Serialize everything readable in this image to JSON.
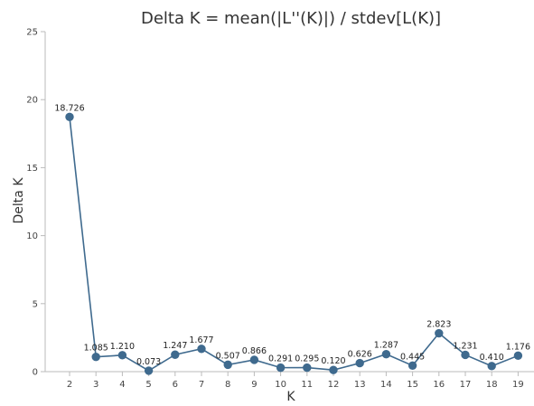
{
  "chart_data": {
    "type": "line",
    "title": "Delta K = mean(|L''(K)|) / stdev[L(K)]",
    "xlabel": "K",
    "ylabel": "Delta K",
    "ylim": [
      0,
      25
    ],
    "y_ticks": [
      "0",
      "5",
      "10",
      "15",
      "20",
      "25"
    ],
    "x": [
      "2",
      "3",
      "4",
      "5",
      "6",
      "7",
      "8",
      "9",
      "10",
      "11",
      "12",
      "13",
      "14",
      "15",
      "16",
      "17",
      "18",
      "19"
    ],
    "values": [
      18.726,
      1.085,
      1.21,
      0.073,
      1.247,
      1.677,
      0.507,
      0.866,
      0.291,
      0.295,
      0.12,
      0.626,
      1.287,
      0.445,
      2.823,
      1.231,
      0.41,
      1.176
    ],
    "data_labels": [
      "18.726",
      "1.085",
      "1.210",
      "0.073",
      "1.247",
      "1.677",
      "0.507",
      "0.866",
      "0.291",
      "0.295",
      "0.120",
      "0.626",
      "1.287",
      "0.445",
      "2.823",
      "1.231",
      "0.410",
      "1.176"
    ],
    "grid": false,
    "legend": "none",
    "colors": {
      "series": "#3f6a8e",
      "axis": "#bbbbbb",
      "text": "#333333"
    }
  }
}
